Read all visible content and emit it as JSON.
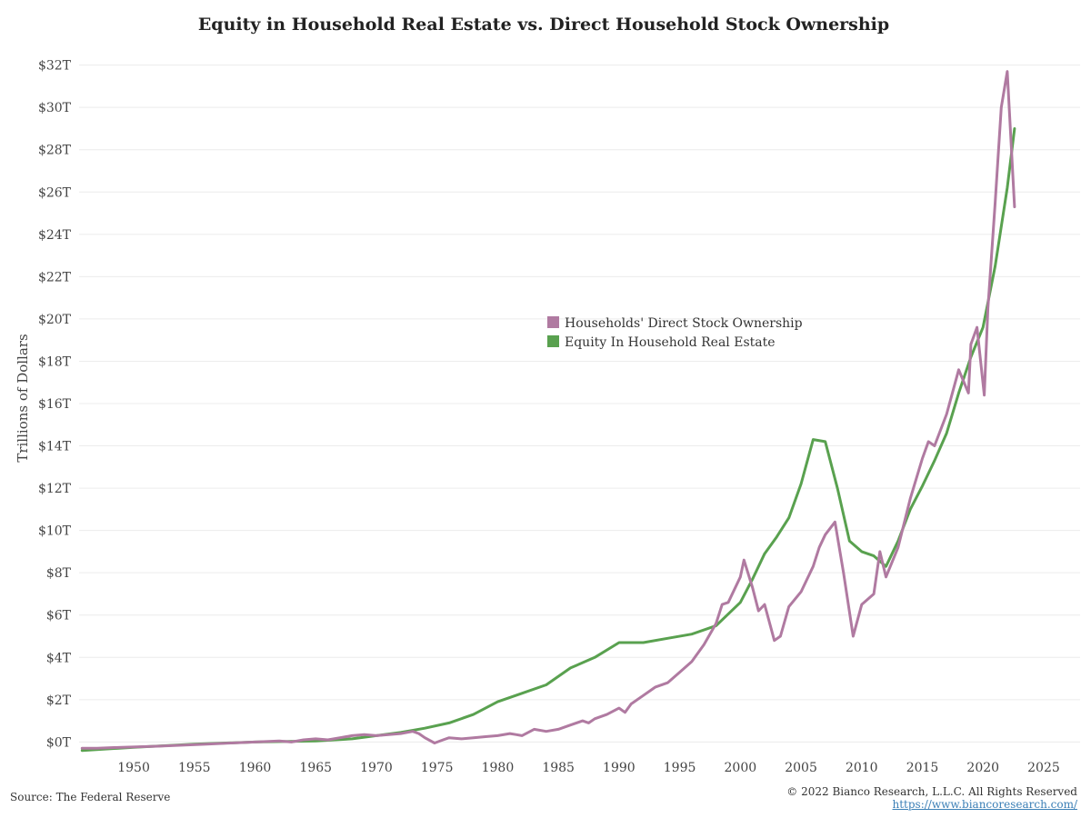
{
  "chart_data": {
    "type": "line",
    "title": "Equity in Household Real Estate vs. Direct Household Stock Ownership",
    "ylabel": "Trillions of Dollars",
    "xlabel": "",
    "xlim": [
      1945.5,
      2028
    ],
    "ylim": [
      -0.5,
      32.5
    ],
    "x_ticks": [
      1950,
      1955,
      1960,
      1965,
      1970,
      1975,
      1980,
      1985,
      1990,
      1995,
      2000,
      2005,
      2010,
      2015,
      2020,
      2025
    ],
    "x_tick_labels": [
      "1950",
      "1955",
      "1960",
      "1965",
      "1970",
      "1975",
      "1980",
      "1985",
      "1990",
      "1995",
      "2000",
      "2005",
      "2010",
      "2015",
      "2020",
      "2025"
    ],
    "y_ticks": [
      0,
      2,
      4,
      6,
      8,
      10,
      12,
      14,
      16,
      18,
      20,
      22,
      24,
      26,
      28,
      30,
      32
    ],
    "y_tick_labels": [
      "$0T",
      "$2T",
      "$4T",
      "$6T",
      "$8T",
      "$10T",
      "$12T",
      "$14T",
      "$16T",
      "$18T",
      "$20T",
      "$22T",
      "$24T",
      "$26T",
      "$28T",
      "$30T",
      "$32T"
    ],
    "grid": true,
    "legend_position": "center-right",
    "series": [
      {
        "name": "Households' Direct Stock Ownership",
        "color": "#b07aa1",
        "points": [
          [
            1945.75,
            -0.3
          ],
          [
            1947,
            -0.3
          ],
          [
            1949,
            -0.25
          ],
          [
            1952,
            -0.2
          ],
          [
            1954,
            -0.15
          ],
          [
            1956,
            -0.1
          ],
          [
            1958,
            -0.05
          ],
          [
            1960,
            0.0
          ],
          [
            1962,
            0.05
          ],
          [
            1963,
            0.0
          ],
          [
            1964,
            0.1
          ],
          [
            1965,
            0.15
          ],
          [
            1966,
            0.1
          ],
          [
            1967,
            0.2
          ],
          [
            1968,
            0.3
          ],
          [
            1969,
            0.35
          ],
          [
            1970,
            0.3
          ],
          [
            1971,
            0.35
          ],
          [
            1972,
            0.4
          ],
          [
            1973,
            0.5
          ],
          [
            1973.5,
            0.4
          ],
          [
            1974,
            0.2
          ],
          [
            1974.8,
            -0.05
          ],
          [
            1975.5,
            0.1
          ],
          [
            1976,
            0.2
          ],
          [
            1977,
            0.15
          ],
          [
            1978,
            0.2
          ],
          [
            1979,
            0.25
          ],
          [
            1980,
            0.3
          ],
          [
            1981,
            0.4
          ],
          [
            1981.5,
            0.35
          ],
          [
            1982,
            0.3
          ],
          [
            1983,
            0.6
          ],
          [
            1984,
            0.5
          ],
          [
            1985,
            0.6
          ],
          [
            1986,
            0.8
          ],
          [
            1987,
            1.0
          ],
          [
            1987.5,
            0.9
          ],
          [
            1988,
            1.1
          ],
          [
            1989,
            1.3
          ],
          [
            1990,
            1.6
          ],
          [
            1990.5,
            1.4
          ],
          [
            1991,
            1.8
          ],
          [
            1992,
            2.2
          ],
          [
            1993,
            2.6
          ],
          [
            1994,
            2.8
          ],
          [
            1995,
            3.3
          ],
          [
            1996,
            3.8
          ],
          [
            1997,
            4.6
          ],
          [
            1998,
            5.6
          ],
          [
            1998.5,
            6.5
          ],
          [
            1999,
            6.6
          ],
          [
            2000,
            7.8
          ],
          [
            2000.3,
            8.6
          ],
          [
            2001,
            7.3
          ],
          [
            2001.5,
            6.2
          ],
          [
            2002,
            6.5
          ],
          [
            2002.8,
            4.8
          ],
          [
            2003.3,
            5.0
          ],
          [
            2004,
            6.4
          ],
          [
            2005,
            7.1
          ],
          [
            2006,
            8.3
          ],
          [
            2006.5,
            9.2
          ],
          [
            2007,
            9.8
          ],
          [
            2007.8,
            10.4
          ],
          [
            2008.5,
            8.0
          ],
          [
            2009.3,
            5.0
          ],
          [
            2010,
            6.5
          ],
          [
            2011,
            7.0
          ],
          [
            2011.5,
            9.0
          ],
          [
            2012,
            7.8
          ],
          [
            2013,
            9.2
          ],
          [
            2014,
            11.5
          ],
          [
            2015,
            13.4
          ],
          [
            2015.5,
            14.2
          ],
          [
            2016,
            14.0
          ],
          [
            2017,
            15.5
          ],
          [
            2018,
            17.6
          ],
          [
            2018.8,
            16.5
          ],
          [
            2019,
            18.8
          ],
          [
            2019.5,
            19.6
          ],
          [
            2020.1,
            16.4
          ],
          [
            2020.4,
            20.5
          ],
          [
            2021,
            25.5
          ],
          [
            2021.5,
            30.0
          ],
          [
            2022,
            31.7
          ],
          [
            2022.6,
            25.3
          ]
        ]
      },
      {
        "name": "Equity In Household Real Estate",
        "color": "#59a14f",
        "points": [
          [
            1945.75,
            -0.4
          ],
          [
            1950,
            -0.25
          ],
          [
            1955,
            -0.1
          ],
          [
            1960,
            0.0
          ],
          [
            1965,
            0.05
          ],
          [
            1968,
            0.15
          ],
          [
            1970,
            0.3
          ],
          [
            1972,
            0.45
          ],
          [
            1974,
            0.65
          ],
          [
            1976,
            0.9
          ],
          [
            1978,
            1.3
          ],
          [
            1980,
            1.9
          ],
          [
            1982,
            2.3
          ],
          [
            1984,
            2.7
          ],
          [
            1986,
            3.5
          ],
          [
            1988,
            4.0
          ],
          [
            1990,
            4.7
          ],
          [
            1992,
            4.7
          ],
          [
            1994,
            4.9
          ],
          [
            1996,
            5.1
          ],
          [
            1998,
            5.5
          ],
          [
            2000,
            6.6
          ],
          [
            2001,
            7.7
          ],
          [
            2002,
            8.9
          ],
          [
            2003,
            9.7
          ],
          [
            2004,
            10.6
          ],
          [
            2005,
            12.2
          ],
          [
            2006,
            14.3
          ],
          [
            2007,
            14.2
          ],
          [
            2008,
            12.0
          ],
          [
            2009,
            9.5
          ],
          [
            2010,
            9.0
          ],
          [
            2011,
            8.8
          ],
          [
            2012,
            8.3
          ],
          [
            2013,
            9.5
          ],
          [
            2014,
            11.0
          ],
          [
            2015,
            12.1
          ],
          [
            2016,
            13.3
          ],
          [
            2017,
            14.6
          ],
          [
            2018,
            16.5
          ],
          [
            2019,
            18.2
          ],
          [
            2020,
            19.6
          ],
          [
            2021,
            22.5
          ],
          [
            2022,
            26.2
          ],
          [
            2022.6,
            29.0
          ]
        ]
      }
    ]
  },
  "footer": {
    "source": "Source: The Federal Reserve",
    "copyright": "© 2022 Bianco Research, L.L.C. All Rights Reserved",
    "url": "https://www.biancoresearch.com/"
  }
}
